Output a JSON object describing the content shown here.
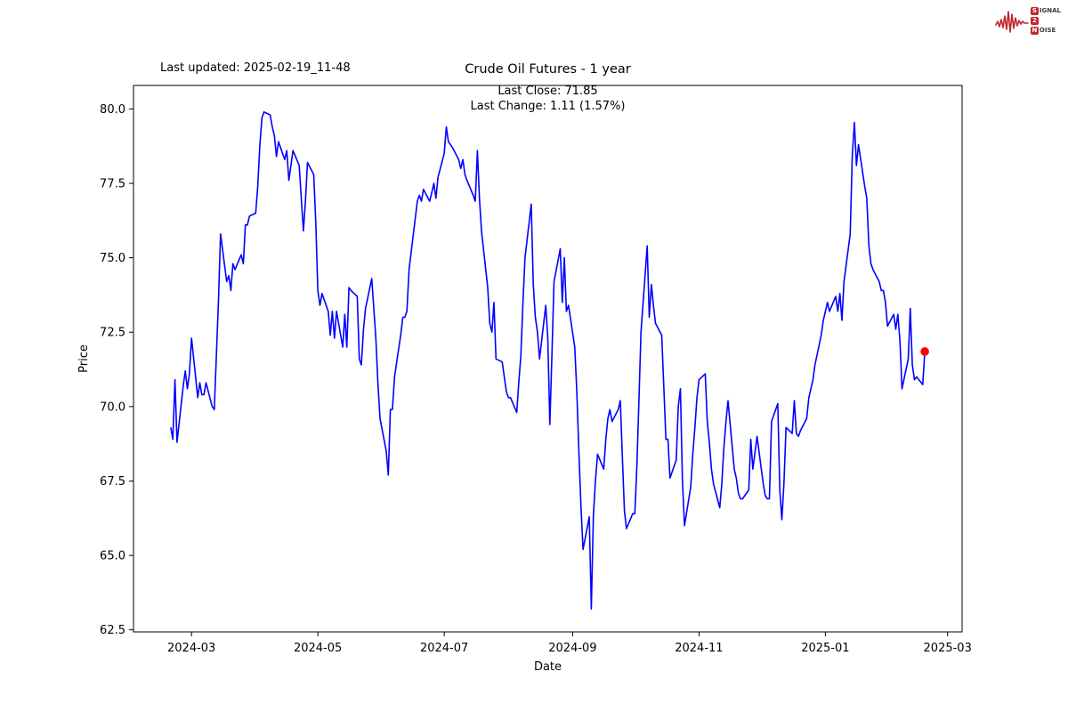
{
  "header": {
    "last_updated": "Last updated: 2025-02-19_11-48",
    "title": "Crude Oil Futures - 1 year",
    "annotation_line1": "Last Close: 71.85",
    "annotation_line2": "Last Change: 1.11 (1.57%)"
  },
  "logo": {
    "signal_s": "S",
    "signal_rest": "IGNAL",
    "two": "2",
    "noise_n": "N",
    "noise_rest": "OISE",
    "color": "#c0272d"
  },
  "chart_data": {
    "type": "line",
    "title": "Crude Oil Futures - 1 year",
    "xlabel": "Date",
    "ylabel": "Price",
    "line_color": "#0000ff",
    "last_point_color": "#ff0000",
    "last_close": 71.85,
    "last_change": "1.11 (1.57%)",
    "grid": false,
    "ylim": [
      62.43,
      80.79
    ],
    "xlim": [
      "2024-02-02",
      "2025-03-08"
    ],
    "y_ticks": [
      62.5,
      65.0,
      67.5,
      70.0,
      72.5,
      75.0,
      77.5,
      80.0
    ],
    "x_ticks": [
      {
        "date": "2024-03-01",
        "label": "2024-03"
      },
      {
        "date": "2024-05-01",
        "label": "2024-05"
      },
      {
        "date": "2024-07-01",
        "label": "2024-07"
      },
      {
        "date": "2024-09-01",
        "label": "2024-09"
      },
      {
        "date": "2024-11-01",
        "label": "2024-11"
      },
      {
        "date": "2025-01-01",
        "label": "2025-01"
      },
      {
        "date": "2025-03-01",
        "label": "2025-03"
      }
    ],
    "series": [
      {
        "name": "price",
        "points": [
          [
            "2024-02-20",
            69.3
          ],
          [
            "2024-02-21",
            68.9
          ],
          [
            "2024-02-22",
            70.9
          ],
          [
            "2024-02-23",
            68.8
          ],
          [
            "2024-02-26",
            70.7
          ],
          [
            "2024-02-27",
            71.2
          ],
          [
            "2024-02-28",
            70.6
          ],
          [
            "2024-02-29",
            71.1
          ],
          [
            "2024-03-01",
            72.3
          ],
          [
            "2024-03-04",
            70.3
          ],
          [
            "2024-03-05",
            70.8
          ],
          [
            "2024-03-06",
            70.4
          ],
          [
            "2024-03-07",
            70.4
          ],
          [
            "2024-03-08",
            70.8
          ],
          [
            "2024-03-11",
            70.0
          ],
          [
            "2024-03-12",
            69.9
          ],
          [
            "2024-03-13",
            71.7
          ],
          [
            "2024-03-14",
            73.5
          ],
          [
            "2024-03-15",
            75.8
          ],
          [
            "2024-03-18",
            74.2
          ],
          [
            "2024-03-19",
            74.4
          ],
          [
            "2024-03-20",
            73.9
          ],
          [
            "2024-03-21",
            74.8
          ],
          [
            "2024-03-22",
            74.6
          ],
          [
            "2024-03-25",
            75.1
          ],
          [
            "2024-03-26",
            74.8
          ],
          [
            "2024-03-27",
            76.1
          ],
          [
            "2024-03-28",
            76.1
          ],
          [
            "2024-03-29",
            76.4
          ],
          [
            "2024-04-01",
            76.5
          ],
          [
            "2024-04-02",
            77.4
          ],
          [
            "2024-04-03",
            78.8
          ],
          [
            "2024-04-04",
            79.7
          ],
          [
            "2024-04-05",
            79.9
          ],
          [
            "2024-04-08",
            79.8
          ],
          [
            "2024-04-09",
            79.4
          ],
          [
            "2024-04-10",
            79.1
          ],
          [
            "2024-04-11",
            78.4
          ],
          [
            "2024-04-12",
            78.9
          ],
          [
            "2024-04-15",
            78.3
          ],
          [
            "2024-04-16",
            78.6
          ],
          [
            "2024-04-17",
            77.6
          ],
          [
            "2024-04-18",
            78.1
          ],
          [
            "2024-04-19",
            78.6
          ],
          [
            "2024-04-22",
            78.1
          ],
          [
            "2024-04-23",
            77.0
          ],
          [
            "2024-04-24",
            75.9
          ],
          [
            "2024-04-25",
            76.9
          ],
          [
            "2024-04-26",
            78.2
          ],
          [
            "2024-04-29",
            77.8
          ],
          [
            "2024-04-30",
            76.2
          ],
          [
            "2024-05-01",
            73.9
          ],
          [
            "2024-05-02",
            73.4
          ],
          [
            "2024-05-03",
            73.8
          ],
          [
            "2024-05-06",
            73.2
          ],
          [
            "2024-05-07",
            72.4
          ],
          [
            "2024-05-08",
            73.2
          ],
          [
            "2024-05-09",
            72.3
          ],
          [
            "2024-05-10",
            73.2
          ],
          [
            "2024-05-13",
            72.0
          ],
          [
            "2024-05-14",
            73.1
          ],
          [
            "2024-05-15",
            72.0
          ],
          [
            "2024-05-16",
            74.0
          ],
          [
            "2024-05-17",
            73.9
          ],
          [
            "2024-05-20",
            73.7
          ],
          [
            "2024-05-21",
            71.6
          ],
          [
            "2024-05-22",
            71.4
          ],
          [
            "2024-05-23",
            72.6
          ],
          [
            "2024-05-24",
            73.3
          ],
          [
            "2024-05-27",
            74.3
          ],
          [
            "2024-05-28",
            73.3
          ],
          [
            "2024-05-29",
            72.3
          ],
          [
            "2024-05-30",
            70.8
          ],
          [
            "2024-05-31",
            69.6
          ],
          [
            "2024-06-03",
            68.5
          ],
          [
            "2024-06-04",
            67.7
          ],
          [
            "2024-06-05",
            69.9
          ],
          [
            "2024-06-06",
            69.9
          ],
          [
            "2024-06-07",
            71.0
          ],
          [
            "2024-06-10",
            72.4
          ],
          [
            "2024-06-11",
            73.0
          ],
          [
            "2024-06-12",
            73.0
          ],
          [
            "2024-06-13",
            73.2
          ],
          [
            "2024-06-14",
            74.6
          ],
          [
            "2024-06-17",
            76.3
          ],
          [
            "2024-06-18",
            76.9
          ],
          [
            "2024-06-19",
            77.1
          ],
          [
            "2024-06-20",
            76.9
          ],
          [
            "2024-06-21",
            77.3
          ],
          [
            "2024-06-24",
            76.9
          ],
          [
            "2024-06-25",
            77.2
          ],
          [
            "2024-06-26",
            77.5
          ],
          [
            "2024-06-27",
            77.0
          ],
          [
            "2024-06-28",
            77.7
          ],
          [
            "2024-07-01",
            78.5
          ],
          [
            "2024-07-02",
            79.4
          ],
          [
            "2024-07-03",
            78.9
          ],
          [
            "2024-07-05",
            78.7
          ],
          [
            "2024-07-08",
            78.3
          ],
          [
            "2024-07-09",
            78.0
          ],
          [
            "2024-07-10",
            78.3
          ],
          [
            "2024-07-11",
            77.8
          ],
          [
            "2024-07-12",
            77.6
          ],
          [
            "2024-07-15",
            77.1
          ],
          [
            "2024-07-16",
            76.9
          ],
          [
            "2024-07-17",
            78.6
          ],
          [
            "2024-07-18",
            77.0
          ],
          [
            "2024-07-19",
            75.9
          ],
          [
            "2024-07-22",
            74.0
          ],
          [
            "2024-07-23",
            72.8
          ],
          [
            "2024-07-24",
            72.5
          ],
          [
            "2024-07-25",
            73.5
          ],
          [
            "2024-07-26",
            71.6
          ],
          [
            "2024-07-29",
            71.5
          ],
          [
            "2024-07-30",
            71.0
          ],
          [
            "2024-07-31",
            70.5
          ],
          [
            "2024-08-01",
            70.3
          ],
          [
            "2024-08-02",
            70.3
          ],
          [
            "2024-08-05",
            69.8
          ],
          [
            "2024-08-06",
            70.8
          ],
          [
            "2024-08-07",
            71.7
          ],
          [
            "2024-08-08",
            73.5
          ],
          [
            "2024-08-09",
            75.0
          ],
          [
            "2024-08-12",
            76.8
          ],
          [
            "2024-08-13",
            74.1
          ],
          [
            "2024-08-14",
            73.0
          ],
          [
            "2024-08-15",
            72.5
          ],
          [
            "2024-08-16",
            71.6
          ],
          [
            "2024-08-19",
            73.4
          ],
          [
            "2024-08-20",
            72.3
          ],
          [
            "2024-08-21",
            69.4
          ],
          [
            "2024-08-22",
            71.8
          ],
          [
            "2024-08-23",
            74.2
          ],
          [
            "2024-08-26",
            75.3
          ],
          [
            "2024-08-27",
            73.5
          ],
          [
            "2024-08-28",
            75.0
          ],
          [
            "2024-08-29",
            73.2
          ],
          [
            "2024-08-30",
            73.4
          ],
          [
            "2024-09-02",
            72.0
          ],
          [
            "2024-09-03",
            70.5
          ],
          [
            "2024-09-04",
            68.5
          ],
          [
            "2024-09-05",
            66.7
          ],
          [
            "2024-09-06",
            65.2
          ],
          [
            "2024-09-09",
            66.3
          ],
          [
            "2024-09-10",
            63.2
          ],
          [
            "2024-09-11",
            66.3
          ],
          [
            "2024-09-12",
            67.5
          ],
          [
            "2024-09-13",
            68.4
          ],
          [
            "2024-09-16",
            67.9
          ],
          [
            "2024-09-17",
            68.9
          ],
          [
            "2024-09-18",
            69.6
          ],
          [
            "2024-09-19",
            69.9
          ],
          [
            "2024-09-20",
            69.5
          ],
          [
            "2024-09-23",
            69.9
          ],
          [
            "2024-09-24",
            70.2
          ],
          [
            "2024-09-25",
            68.3
          ],
          [
            "2024-09-26",
            66.5
          ],
          [
            "2024-09-27",
            65.9
          ],
          [
            "2024-09-30",
            66.4
          ],
          [
            "2024-10-01",
            66.4
          ],
          [
            "2024-10-02",
            68.0
          ],
          [
            "2024-10-03",
            70.2
          ],
          [
            "2024-10-04",
            72.5
          ],
          [
            "2024-10-07",
            75.4
          ],
          [
            "2024-10-08",
            73.0
          ],
          [
            "2024-10-09",
            74.1
          ],
          [
            "2024-10-10",
            73.4
          ],
          [
            "2024-10-11",
            72.8
          ],
          [
            "2024-10-14",
            72.4
          ],
          [
            "2024-10-15",
            70.7
          ],
          [
            "2024-10-16",
            68.9
          ],
          [
            "2024-10-17",
            68.9
          ],
          [
            "2024-10-18",
            67.6
          ],
          [
            "2024-10-21",
            68.2
          ],
          [
            "2024-10-22",
            70.0
          ],
          [
            "2024-10-23",
            70.6
          ],
          [
            "2024-10-24",
            67.5
          ],
          [
            "2024-10-25",
            66.0
          ],
          [
            "2024-10-28",
            67.3
          ],
          [
            "2024-10-29",
            68.4
          ],
          [
            "2024-10-30",
            69.3
          ],
          [
            "2024-10-31",
            70.3
          ],
          [
            "2024-11-01",
            70.9
          ],
          [
            "2024-11-04",
            71.1
          ],
          [
            "2024-11-05",
            69.5
          ],
          [
            "2024-11-06",
            68.8
          ],
          [
            "2024-11-07",
            67.9
          ],
          [
            "2024-11-08",
            67.4
          ],
          [
            "2024-11-11",
            66.6
          ],
          [
            "2024-11-12",
            67.4
          ],
          [
            "2024-11-13",
            68.6
          ],
          [
            "2024-11-14",
            69.5
          ],
          [
            "2024-11-15",
            70.2
          ],
          [
            "2024-11-18",
            67.9
          ],
          [
            "2024-11-19",
            67.6
          ],
          [
            "2024-11-20",
            67.1
          ],
          [
            "2024-11-21",
            66.9
          ],
          [
            "2024-11-22",
            66.9
          ],
          [
            "2024-11-25",
            67.2
          ],
          [
            "2024-11-26",
            68.9
          ],
          [
            "2024-11-27",
            67.9
          ],
          [
            "2024-11-29",
            69.0
          ],
          [
            "2024-12-02",
            67.4
          ],
          [
            "2024-12-03",
            67.0
          ],
          [
            "2024-12-04",
            66.9
          ],
          [
            "2024-12-05",
            66.9
          ],
          [
            "2024-12-06",
            69.5
          ],
          [
            "2024-12-09",
            70.1
          ],
          [
            "2024-12-10",
            67.2
          ],
          [
            "2024-12-11",
            66.2
          ],
          [
            "2024-12-12",
            67.4
          ],
          [
            "2024-12-13",
            69.3
          ],
          [
            "2024-12-16",
            69.1
          ],
          [
            "2024-12-17",
            70.2
          ],
          [
            "2024-12-18",
            69.1
          ],
          [
            "2024-12-19",
            69.0
          ],
          [
            "2024-12-20",
            69.2
          ],
          [
            "2024-12-23",
            69.6
          ],
          [
            "2024-12-24",
            70.3
          ],
          [
            "2024-12-26",
            70.9
          ],
          [
            "2024-12-27",
            71.4
          ],
          [
            "2024-12-30",
            72.4
          ],
          [
            "2024-12-31",
            72.9
          ],
          [
            "2025-01-02",
            73.5
          ],
          [
            "2025-01-03",
            73.2
          ],
          [
            "2025-01-06",
            73.7
          ],
          [
            "2025-01-07",
            73.2
          ],
          [
            "2025-01-08",
            73.8
          ],
          [
            "2025-01-09",
            72.9
          ],
          [
            "2025-01-10",
            74.2
          ],
          [
            "2025-01-13",
            75.8
          ],
          [
            "2025-01-14",
            78.4
          ],
          [
            "2025-01-15",
            79.55
          ],
          [
            "2025-01-16",
            78.1
          ],
          [
            "2025-01-17",
            78.8
          ],
          [
            "2025-01-20",
            77.4
          ],
          [
            "2025-01-21",
            77.0
          ],
          [
            "2025-01-22",
            75.4
          ],
          [
            "2025-01-23",
            74.8
          ],
          [
            "2025-01-24",
            74.6
          ],
          [
            "2025-01-27",
            74.2
          ],
          [
            "2025-01-28",
            73.9
          ],
          [
            "2025-01-29",
            73.9
          ],
          [
            "2025-01-30",
            73.5
          ],
          [
            "2025-01-31",
            72.7
          ],
          [
            "2025-02-03",
            73.1
          ],
          [
            "2025-02-04",
            72.6
          ],
          [
            "2025-02-05",
            73.1
          ],
          [
            "2025-02-06",
            72.2
          ],
          [
            "2025-02-07",
            70.6
          ],
          [
            "2025-02-10",
            71.6
          ],
          [
            "2025-02-11",
            73.3
          ],
          [
            "2025-02-12",
            71.4
          ],
          [
            "2025-02-13",
            70.9
          ],
          [
            "2025-02-14",
            71.0
          ],
          [
            "2025-02-17",
            70.74
          ],
          [
            "2025-02-18",
            71.85
          ]
        ]
      }
    ]
  }
}
